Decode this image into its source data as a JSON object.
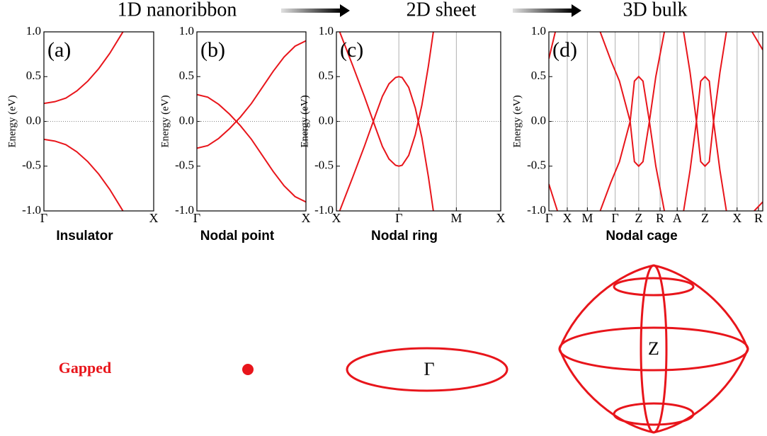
{
  "header": [
    "1D nanoribbon",
    "2D sheet",
    "3D bulk"
  ],
  "chart_data": [
    {
      "type": "line",
      "panel_label": "(a)",
      "ylabel": "Energy (eV)",
      "caption": "Insulator",
      "xlim": [
        0,
        1
      ],
      "ylim": [
        -1,
        1
      ],
      "xticks": [
        {
          "value": 0,
          "label": "Γ"
        },
        {
          "value": 1,
          "label": "X"
        }
      ],
      "xgrid": false,
      "yticks": [
        {
          "value": -1,
          "label": "-1.0"
        },
        -0.5,
        {
          "value": 0,
          "label": "0.0"
        },
        0.5,
        {
          "value": 1,
          "label": "1.0"
        }
      ],
      "x": [
        0,
        0.1,
        0.2,
        0.3,
        0.4,
        0.5,
        0.6,
        0.7,
        0.72
      ],
      "series": [
        {
          "color": "#e8151b",
          "values": [
            0.2,
            0.22,
            0.26,
            0.34,
            0.45,
            0.59,
            0.76,
            0.96,
            1.0
          ]
        },
        {
          "color": "#e8151b",
          "values": [
            -0.2,
            -0.22,
            -0.26,
            -0.34,
            -0.45,
            -0.59,
            -0.76,
            -0.96,
            -1.0
          ]
        }
      ]
    },
    {
      "type": "line",
      "panel_label": "(b)",
      "ylabel": "Energy (eV)",
      "caption": "Nodal point",
      "xlim": [
        0,
        1
      ],
      "ylim": [
        -1,
        1
      ],
      "xticks": [
        {
          "value": 0,
          "label": "Γ"
        },
        {
          "value": 1,
          "label": "X"
        }
      ],
      "xgrid": false,
      "yticks": [
        {
          "value": -1,
          "label": "-1.0"
        },
        -0.5,
        {
          "value": 0,
          "label": "0.0"
        },
        0.5,
        {
          "value": 1,
          "label": "1.0"
        }
      ],
      "x": [
        0,
        0.1,
        0.2,
        0.3,
        0.4,
        0.5,
        0.6,
        0.7,
        0.8,
        0.9,
        1
      ],
      "series": [
        {
          "color": "#e8151b",
          "values": [
            0.3,
            0.27,
            0.19,
            0.08,
            -0.05,
            -0.2,
            -0.38,
            -0.56,
            -0.72,
            -0.84,
            -0.9
          ]
        },
        {
          "color": "#e8151b",
          "values": [
            -0.3,
            -0.27,
            -0.19,
            -0.08,
            0.05,
            0.2,
            0.38,
            0.56,
            0.72,
            0.84,
            0.9
          ]
        }
      ]
    },
    {
      "type": "line",
      "panel_label": "(c)",
      "ylabel": "Energy (eV)",
      "caption": "Nodal ring",
      "xlim": [
        0,
        1
      ],
      "ylim": [
        -1,
        1
      ],
      "xticks": [
        {
          "value": 0,
          "label": "X"
        },
        {
          "value": 0.38,
          "label": "Γ"
        },
        {
          "value": 0.73,
          "label": "M"
        },
        {
          "value": 1,
          "label": "X"
        }
      ],
      "xgrid": true,
      "yticks": [
        {
          "value": -1,
          "label": "-1.0"
        },
        -0.5,
        {
          "value": 0,
          "label": "0.0"
        },
        0.5,
        {
          "value": 1,
          "label": "1.0"
        }
      ],
      "x": [
        0.02,
        0.1,
        0.17,
        0.24,
        0.28,
        0.32,
        0.36,
        0.38,
        0.4,
        0.44,
        0.48,
        0.52,
        0.56,
        0.59
      ],
      "series": [
        {
          "color": "#e8151b",
          "values": [
            1.0,
            0.62,
            0.28,
            -0.08,
            -0.28,
            -0.42,
            -0.49,
            -0.5,
            -0.49,
            -0.38,
            -0.15,
            0.18,
            0.62,
            1.0
          ]
        },
        {
          "color": "#e8151b",
          "values": [
            -1.0,
            -0.62,
            -0.28,
            0.08,
            0.28,
            0.42,
            0.49,
            0.5,
            0.49,
            0.38,
            0.15,
            -0.18,
            -0.62,
            -1.0
          ]
        }
      ]
    },
    {
      "type": "line",
      "panel_label": "(d)",
      "ylabel": "Energy (eV)",
      "caption": "Nodal cage",
      "xlim": [
        0,
        1
      ],
      "ylim": [
        -1,
        1
      ],
      "xticks": [
        {
          "value": 0,
          "label": "Γ"
        },
        {
          "value": 0.086,
          "label": "X"
        },
        {
          "value": 0.18,
          "label": "M"
        },
        {
          "value": 0.31,
          "label": "Γ"
        },
        {
          "value": 0.42,
          "label": "Z"
        },
        {
          "value": 0.52,
          "label": "R"
        },
        {
          "value": 0.6,
          "label": "A"
        },
        {
          "value": 0.73,
          "label": "Z"
        },
        {
          "value": 0.88,
          "label": "X"
        },
        {
          "value": 0.98,
          "label": "R"
        }
      ],
      "xgrid": true,
      "yticks": [
        {
          "value": -1,
          "label": "-1.0"
        },
        -0.5,
        {
          "value": 0,
          "label": "0.0"
        },
        0.5,
        {
          "value": 1,
          "label": "1.0"
        }
      ],
      "series": [
        {
          "color": "#e8151b",
          "x": [
            0,
            0.03
          ],
          "values": [
            0.7,
            1.0
          ]
        },
        {
          "color": "#e8151b",
          "x": [
            0,
            0.04
          ],
          "values": [
            -0.7,
            -1.0
          ]
        },
        {
          "color": "#e8151b",
          "x": [
            0.24,
            0.29,
            0.33,
            0.38,
            0.4,
            0.42,
            0.44,
            0.47,
            0.5,
            0.54
          ],
          "values": [
            1.0,
            0.68,
            0.45,
            0,
            -0.45,
            -0.5,
            -0.45,
            0,
            0.5,
            1.0
          ]
        },
        {
          "color": "#e8151b",
          "x": [
            0.24,
            0.29,
            0.33,
            0.38,
            0.4,
            0.42,
            0.44,
            0.47,
            0.5,
            0.54
          ],
          "values": [
            -1.0,
            -0.68,
            -0.45,
            0,
            0.45,
            0.5,
            0.45,
            0,
            -0.5,
            -1.0
          ]
        },
        {
          "color": "#e8151b",
          "x": [
            0.63,
            0.66,
            0.69,
            0.71,
            0.73,
            0.75,
            0.77,
            0.8,
            0.83
          ],
          "values": [
            1.0,
            0.55,
            0,
            -0.45,
            -0.5,
            -0.45,
            0,
            0.55,
            1.0
          ]
        },
        {
          "color": "#e8151b",
          "x": [
            0.63,
            0.66,
            0.69,
            0.71,
            0.73,
            0.75,
            0.77,
            0.8,
            0.83
          ],
          "values": [
            -1.0,
            -0.55,
            0,
            0.45,
            0.5,
            0.45,
            0,
            -0.55,
            -1.0
          ]
        },
        {
          "color": "#e8151b",
          "x": [
            0.95,
            1.0
          ],
          "values": [
            1.0,
            0.8
          ]
        },
        {
          "color": "#e8151b",
          "x": [
            0.96,
            1.0
          ],
          "values": [
            -1.0,
            -0.9
          ]
        }
      ]
    }
  ],
  "illustrations": {
    "gapped": "Gapped",
    "ring_label": "Γ",
    "cage_label": "Z"
  }
}
